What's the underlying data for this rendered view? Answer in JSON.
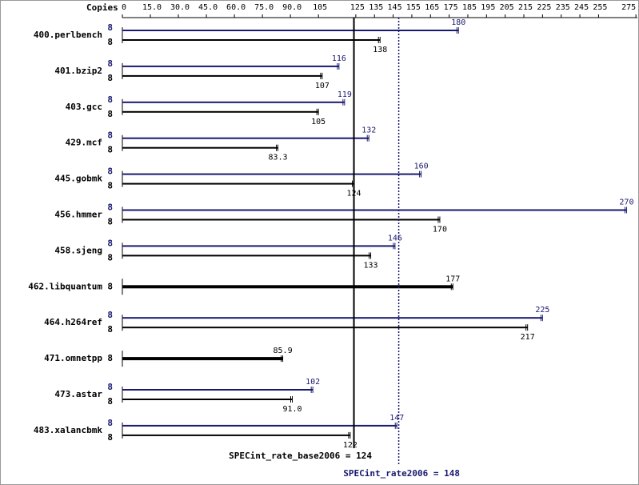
{
  "chart_data": {
    "type": "bar",
    "orientation": "horizontal",
    "axis_label": "Copies",
    "categories": [
      "400.perlbench",
      "401.bzip2",
      "403.gcc",
      "429.mcf",
      "445.gobmk",
      "456.hmmer",
      "458.sjeng",
      "462.libquantum",
      "464.h264ref",
      "471.omnetpp",
      "473.astar",
      "483.xalancbmk"
    ],
    "series": [
      {
        "color": "#191970",
        "copies": [
          8,
          8,
          8,
          8,
          8,
          8,
          8,
          null,
          8,
          null,
          8,
          8
        ],
        "values": [
          180,
          116,
          119,
          132,
          160,
          270,
          146,
          null,
          225,
          null,
          102,
          147
        ]
      },
      {
        "color": "#000000",
        "copies": [
          8,
          8,
          8,
          8,
          8,
          8,
          8,
          8,
          8,
          8,
          8,
          8
        ],
        "values": [
          138,
          107,
          105,
          83.3,
          124,
          170,
          133,
          177,
          217,
          85.9,
          91.0,
          122
        ],
        "value_labels": [
          "138",
          "107",
          "105",
          "83.3",
          "124",
          "170",
          "133",
          "177",
          "217",
          "85.9",
          "91.0",
          "122"
        ]
      }
    ],
    "xlim": [
      0,
      275
    ],
    "xticks": [
      0,
      {
        "value": 15,
        "label": "15.0"
      },
      {
        "value": 30,
        "label": "30.0"
      },
      {
        "value": 45,
        "label": "45.0"
      },
      {
        "value": 60,
        "label": "60.0"
      },
      {
        "value": 75,
        "label": "75.0"
      },
      {
        "value": 90,
        "label": "90.0"
      },
      105,
      125,
      135,
      145,
      155,
      165,
      175,
      185,
      195,
      205,
      215,
      225,
      235,
      245,
      255,
      275
    ],
    "reference_lines": [
      {
        "label": "SPECint_rate_base2006 =",
        "value": 124,
        "color": "#000000",
        "style": "solid"
      },
      {
        "label": "SPECint_rate2006 =",
        "value": 148,
        "color": "#191970",
        "style": "dotted"
      }
    ]
  }
}
